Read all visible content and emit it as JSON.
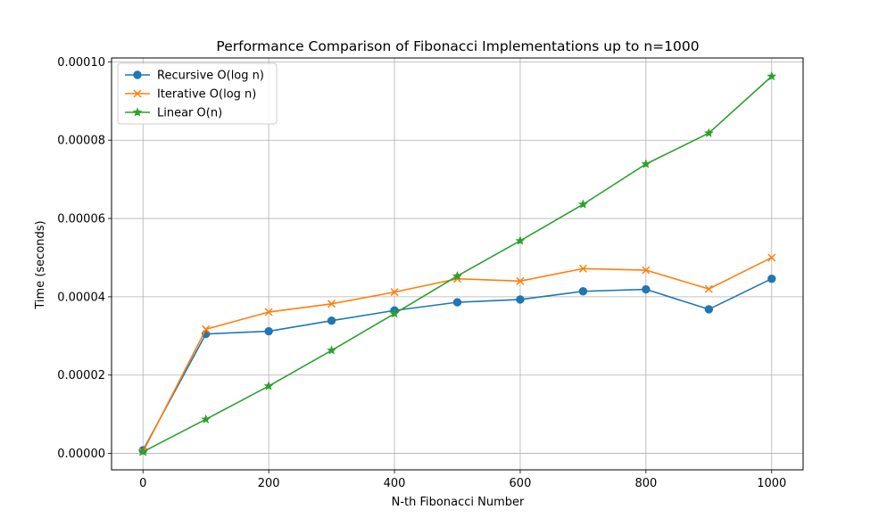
{
  "chart_data": {
    "type": "line",
    "title": "Performance Comparison of Fibonacci Implementations up to n=1000",
    "xlabel": "N-th Fibonacci Number",
    "ylabel": "Time (seconds)",
    "xlim": [
      -50,
      1050
    ],
    "ylim": [
      -4.2e-06,
      0.000101
    ],
    "xticks": [
      0,
      200,
      400,
      600,
      800,
      1000
    ],
    "xtick_labels": [
      "0",
      "200",
      "400",
      "600",
      "800",
      "1000"
    ],
    "yticks": [
      0,
      2e-05,
      4e-05,
      6e-05,
      8e-05,
      0.0001
    ],
    "ytick_labels": [
      "0.00000",
      "0.00002",
      "0.00004",
      "0.00006",
      "0.00008",
      "0.00010"
    ],
    "grid": true,
    "legend_position": "top-left",
    "x": [
      0,
      100,
      200,
      300,
      400,
      500,
      600,
      700,
      800,
      900,
      1000
    ],
    "series": [
      {
        "name": "Recursive O(log n)",
        "color": "#1f77b4",
        "marker": "circle",
        "values": [
          8e-07,
          3.05e-05,
          3.12e-05,
          3.39e-05,
          3.65e-05,
          3.86e-05,
          3.93e-05,
          4.14e-05,
          4.19e-05,
          3.68e-05,
          4.46e-05
        ]
      },
      {
        "name": "Iterative O(log n)",
        "color": "#ff7f0e",
        "marker": "x",
        "values": [
          4e-07,
          3.17e-05,
          3.61e-05,
          3.82e-05,
          4.12e-05,
          4.46e-05,
          4.4e-05,
          4.72e-05,
          4.68e-05,
          4.2e-05,
          5e-05
        ]
      },
      {
        "name": "Linear O(n)",
        "color": "#2ca02c",
        "marker": "star",
        "values": [
          4e-07,
          8.7e-06,
          1.72e-05,
          2.63e-05,
          3.57e-05,
          4.53e-05,
          5.43e-05,
          6.36e-05,
          7.39e-05,
          8.18e-05,
          9.63e-05
        ]
      }
    ]
  }
}
